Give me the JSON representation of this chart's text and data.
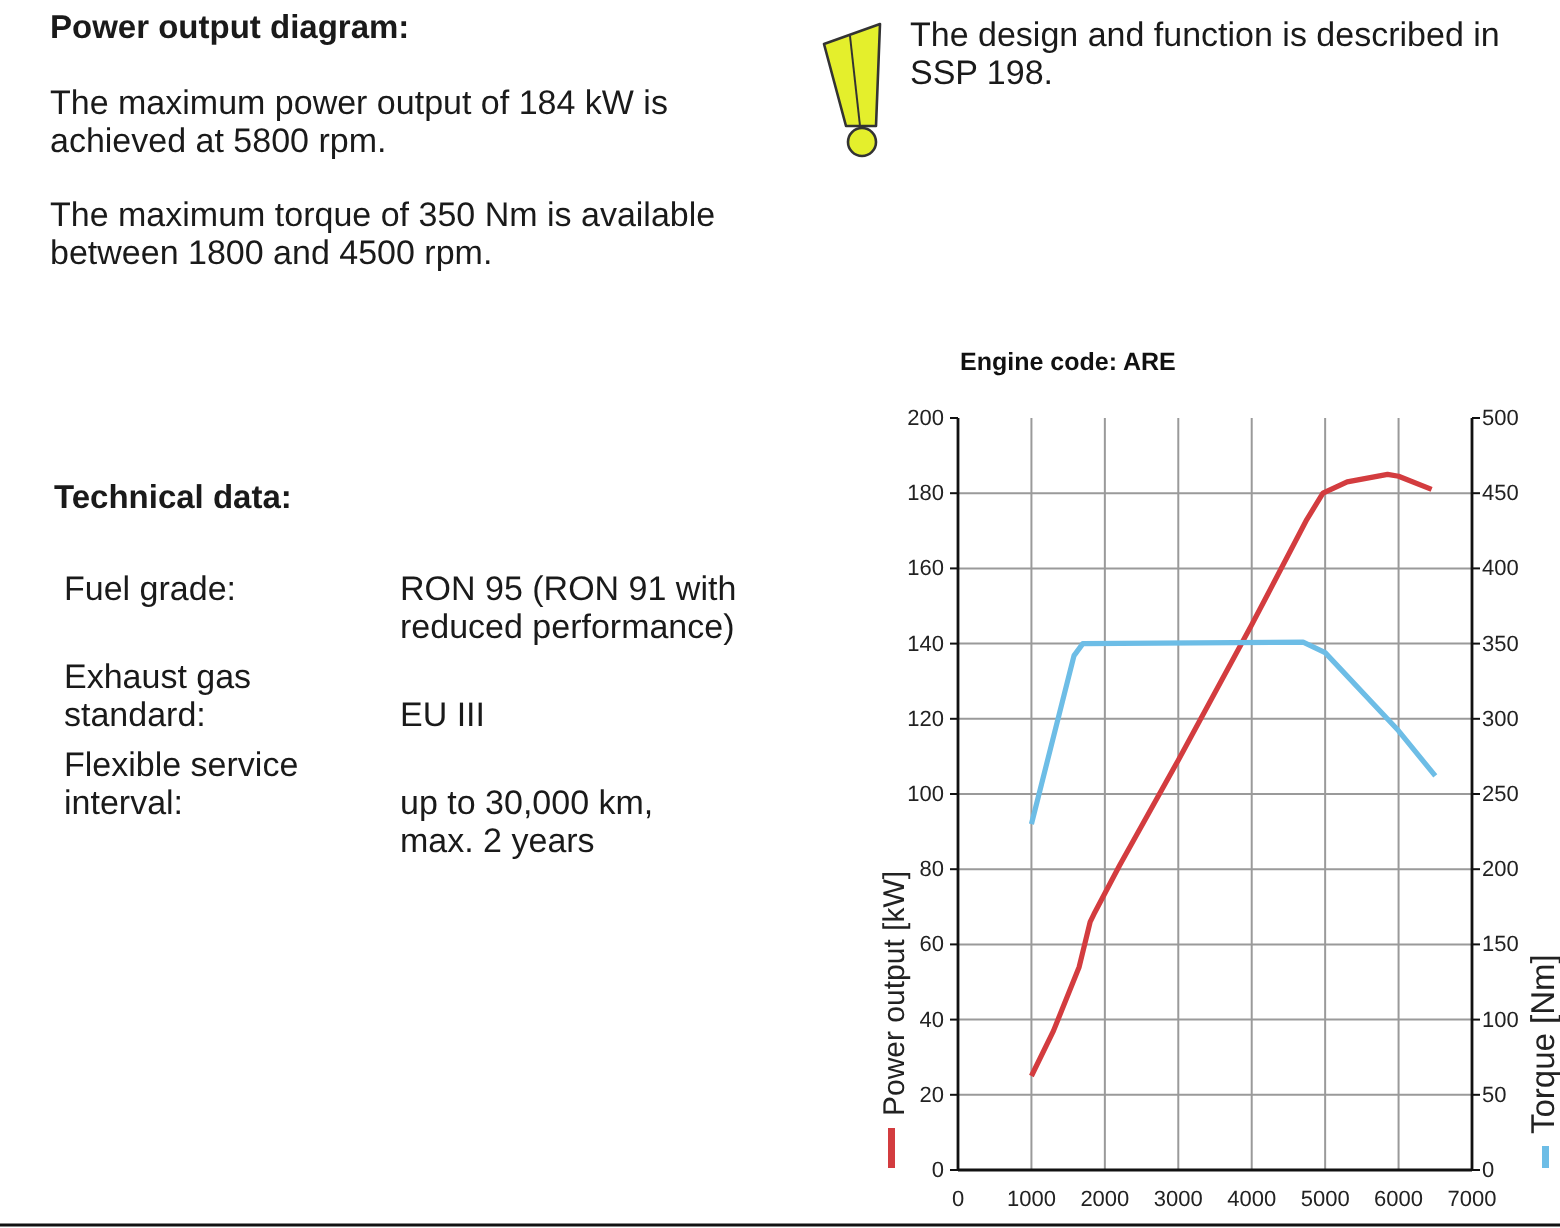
{
  "chart_data": {
    "type": "line",
    "title": "Engine code: ARE",
    "ylabel": "Power output [kW]",
    "y2label": "Torque [Nm]",
    "annotations": [
      "Power output diagram:",
      "The maximum power output of 184 kW is achieved at 5800 rpm.",
      "The maximum torque of 350 Nm is available between 1800 and 4500 rpm.",
      "The design and function is described in SSP 198.",
      "Technical data:",
      "Fuel grade:",
      "RON 95 (RON 91 with reduced performance)",
      "Exhaust gas standard:",
      "EU III",
      "Flexible service interval:",
      "up to 30,000 km, max. 2 years"
    ],
    "xlim": [
      0,
      7000
    ],
    "xticks": [
      0,
      1000,
      2000,
      3000,
      4000,
      5000,
      6000,
      7000
    ],
    "ylim": [
      0,
      200
    ],
    "yticks": [
      0,
      20,
      40,
      60,
      80,
      100,
      120,
      140,
      160,
      180,
      200
    ],
    "y2lim": [
      0,
      500
    ],
    "y2ticks": [
      0,
      50,
      100,
      150,
      200,
      250,
      300,
      350,
      400,
      450,
      500
    ],
    "grid": true,
    "series": [
      {
        "color": "#d33c3f",
        "x": [
          1000,
          1300,
          1650,
          1800,
          1850,
          2200,
          3000,
          4000,
          4750,
          4970,
          5300,
          5850,
          6000,
          6450
        ],
        "values": [
          25,
          37,
          54,
          66,
          68,
          81,
          109,
          145,
          173,
          180,
          183,
          185,
          184.5,
          181
        ]
      },
      {
        "color": "#6dbde6",
        "axis": "y2",
        "x": [
          1000,
          1580,
          1700,
          4700,
          5000,
          6000,
          6500
        ],
        "values": [
          230,
          342,
          350,
          351,
          344,
          292,
          262
        ]
      }
    ]
  }
}
